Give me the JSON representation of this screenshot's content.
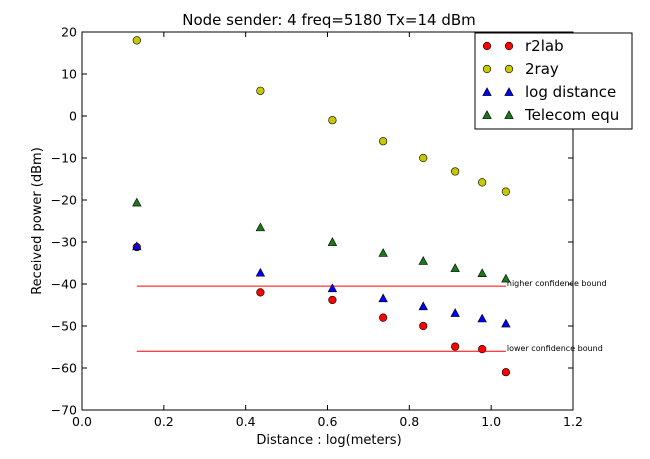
{
  "chart_data": {
    "type": "scatter",
    "title": "Node sender: 4 freq=5180 Tx=14 dBm",
    "xlabel": "Distance : log(meters)",
    "ylabel": "Received power (dBm)",
    "xlim": [
      0.0,
      1.2
    ],
    "ylim": [
      -70,
      20
    ],
    "xticks": [
      "0.0",
      "0.2",
      "0.4",
      "0.6",
      "0.8",
      "1.0",
      "1.2"
    ],
    "yticks": [
      "20",
      "10",
      "0",
      "−10",
      "−20",
      "−30",
      "−40",
      "−50",
      "−60",
      "−70"
    ],
    "xtick_values": [
      0.0,
      0.2,
      0.4,
      0.6,
      0.8,
      1.0,
      1.2
    ],
    "ytick_values": [
      20,
      10,
      0,
      -10,
      -20,
      -30,
      -40,
      -50,
      -60,
      -70
    ],
    "grid": false,
    "legend_position": "top-right",
    "x": [
      0.134,
      0.436,
      0.612,
      0.736,
      0.834,
      0.912,
      0.978,
      1.036
    ],
    "series": [
      {
        "name": "r2lab",
        "marker": "circle",
        "color": "#ff0000",
        "values": [
          -31.2,
          -42.0,
          -43.8,
          -48.0,
          -50.0,
          -54.9,
          -55.5,
          -61.0
        ]
      },
      {
        "name": "2ray",
        "marker": "circle",
        "color": "#c8c800",
        "values": [
          18.0,
          6.0,
          -1.0,
          -6.0,
          -10.0,
          -13.2,
          -15.8,
          -18.0
        ]
      },
      {
        "name": "log distance",
        "marker": "triangle",
        "color": "#0000ff",
        "values": [
          -31.0,
          -37.3,
          -41.0,
          -43.4,
          -45.3,
          -46.9,
          -48.2,
          -49.4
        ]
      },
      {
        "name": "Telecom equ",
        "marker": "triangle",
        "color": "#1a7a1a",
        "values": [
          -20.6,
          -26.5,
          -30.0,
          -32.6,
          -34.5,
          -36.2,
          -37.4,
          -38.7
        ]
      }
    ],
    "reference_lines": [
      {
        "label": "higher confidence bound",
        "y": -40.5,
        "x_start": 0.134,
        "x_end": 1.036,
        "color": "#ff0000"
      },
      {
        "label": "lower confidence bound",
        "y": -56.0,
        "x_start": 0.134,
        "x_end": 1.036,
        "color": "#ff0000"
      }
    ]
  }
}
